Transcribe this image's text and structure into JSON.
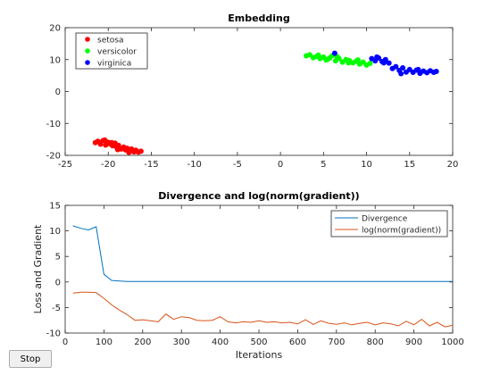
{
  "buttons": {
    "stop_label": "Stop"
  },
  "chart_data": [
    {
      "type": "scatter",
      "title": "Embedding",
      "xlabel": "",
      "ylabel": "",
      "xlim": [
        -25,
        20
      ],
      "ylim": [
        -20,
        20
      ],
      "xticks": [
        "-25",
        "-20",
        "-15",
        "-10",
        "-5",
        "0",
        "5",
        "10",
        "15",
        "20"
      ],
      "yticks": [
        "20",
        "10",
        "0",
        "-10",
        "-20"
      ],
      "legend_position": "top-left",
      "series": [
        {
          "name": "setosa",
          "color": "#ff0000",
          "points": [
            [
              -21.5,
              -16
            ],
            [
              -21.2,
              -15.6
            ],
            [
              -20.9,
              -16.5
            ],
            [
              -20.6,
              -15.4
            ],
            [
              -20.3,
              -16.8
            ],
            [
              -20.0,
              -15.9
            ],
            [
              -19.8,
              -16.4
            ],
            [
              -19.5,
              -17.0
            ],
            [
              -19.2,
              -16.2
            ],
            [
              -19.0,
              -17.5
            ],
            [
              -18.8,
              -16.9
            ],
            [
              -18.5,
              -18.0
            ],
            [
              -18.2,
              -17.4
            ],
            [
              -18.0,
              -18.3
            ],
            [
              -17.8,
              -17.8
            ],
            [
              -17.5,
              -18.6
            ],
            [
              -17.3,
              -18.0
            ],
            [
              -17.0,
              -18.9
            ],
            [
              -16.8,
              -18.4
            ],
            [
              -16.5,
              -19.0
            ],
            [
              -16.2,
              -18.7
            ],
            [
              -20.4,
              -15.2
            ],
            [
              -19.6,
              -16.0
            ],
            [
              -18.9,
              -18.2
            ],
            [
              -17.6,
              -19.1
            ]
          ]
        },
        {
          "name": "versicolor",
          "color": "#00ff00",
          "points": [
            [
              3.0,
              11.2
            ],
            [
              3.4,
              11.5
            ],
            [
              3.8,
              10.6
            ],
            [
              4.2,
              11.0
            ],
            [
              4.6,
              10.3
            ],
            [
              5.0,
              10.8
            ],
            [
              5.3,
              9.9
            ],
            [
              5.7,
              10.5
            ],
            [
              6.0,
              11.2
            ],
            [
              6.4,
              9.6
            ],
            [
              6.8,
              10.3
            ],
            [
              7.2,
              9.2
            ],
            [
              7.6,
              10.0
            ],
            [
              8.0,
              9.7
            ],
            [
              8.4,
              9.0
            ],
            [
              8.8,
              9.5
            ],
            [
              9.2,
              8.6
            ],
            [
              9.6,
              9.2
            ],
            [
              10.0,
              8.3
            ],
            [
              10.4,
              8.8
            ],
            [
              6.6,
              10.9
            ],
            [
              7.9,
              9.0
            ],
            [
              5.5,
              10.1
            ],
            [
              4.4,
              11.4
            ],
            [
              9.0,
              9.9
            ]
          ]
        },
        {
          "name": "virginica",
          "color": "#0000ff",
          "points": [
            [
              6.3,
              12.0
            ],
            [
              10.6,
              10.3
            ],
            [
              11.0,
              9.6
            ],
            [
              11.4,
              10.5
            ],
            [
              11.8,
              9.4
            ],
            [
              12.2,
              10.0
            ],
            [
              12.6,
              8.9
            ],
            [
              13.0,
              7.2
            ],
            [
              13.4,
              7.8
            ],
            [
              13.8,
              6.6
            ],
            [
              14.2,
              7.4
            ],
            [
              14.6,
              6.1
            ],
            [
              15.0,
              6.9
            ],
            [
              15.4,
              6.0
            ],
            [
              15.8,
              6.7
            ],
            [
              16.2,
              5.7
            ],
            [
              16.6,
              6.4
            ],
            [
              17.0,
              5.9
            ],
            [
              17.4,
              6.5
            ],
            [
              17.8,
              6.0
            ],
            [
              18.1,
              6.3
            ],
            [
              11.2,
              10.8
            ],
            [
              12.0,
              9.0
            ],
            [
              14.0,
              5.6
            ],
            [
              16.0,
              6.9
            ]
          ]
        }
      ]
    },
    {
      "type": "line",
      "title": "Divergence and log(norm(gradient))",
      "xlabel": "Iterations",
      "ylabel": "Loss and Gradient",
      "xlim": [
        0,
        1000
      ],
      "ylim": [
        -10,
        15
      ],
      "xticks": [
        "0",
        "100",
        "200",
        "300",
        "400",
        "500",
        "600",
        "700",
        "800",
        "900",
        "1000"
      ],
      "yticks": [
        "15",
        "10",
        "5",
        "0",
        "-5",
        "-10"
      ],
      "legend_position": "top-right",
      "series": [
        {
          "name": "Divergence",
          "color": "#0072bd",
          "x": [
            20,
            40,
            60,
            80,
            100,
            120,
            140,
            160,
            1000
          ],
          "y": [
            11,
            10.5,
            10.2,
            10.8,
            1.5,
            0.3,
            0.2,
            0.1,
            0.1
          ]
        },
        {
          "name": "log(norm(gradient))",
          "color": "#d95319",
          "x": [
            20,
            40,
            60,
            80,
            100,
            120,
            140,
            160,
            180,
            200,
            220,
            240,
            260,
            280,
            300,
            320,
            340,
            360,
            380,
            400,
            420,
            440,
            460,
            480,
            500,
            520,
            540,
            560,
            580,
            600,
            620,
            640,
            660,
            680,
            700,
            720,
            740,
            760,
            780,
            800,
            820,
            840,
            860,
            880,
            900,
            920,
            940,
            960,
            980,
            1000
          ],
          "y": [
            -2.2,
            -2.0,
            -2.0,
            -2.1,
            -3.2,
            -4.5,
            -5.5,
            -6.4,
            -7.5,
            -7.4,
            -7.6,
            -7.8,
            -6.3,
            -7.3,
            -6.8,
            -7.0,
            -7.5,
            -7.6,
            -7.5,
            -6.8,
            -7.8,
            -8.0,
            -7.8,
            -7.9,
            -7.6,
            -7.9,
            -7.8,
            -8.0,
            -7.9,
            -8.2,
            -7.4,
            -8.3,
            -7.6,
            -8.1,
            -8.3,
            -8.0,
            -8.4,
            -8.1,
            -7.9,
            -8.4,
            -8.0,
            -8.2,
            -8.6,
            -7.7,
            -8.4,
            -7.3,
            -8.6,
            -7.9,
            -8.8,
            -8.5
          ]
        }
      ]
    }
  ]
}
